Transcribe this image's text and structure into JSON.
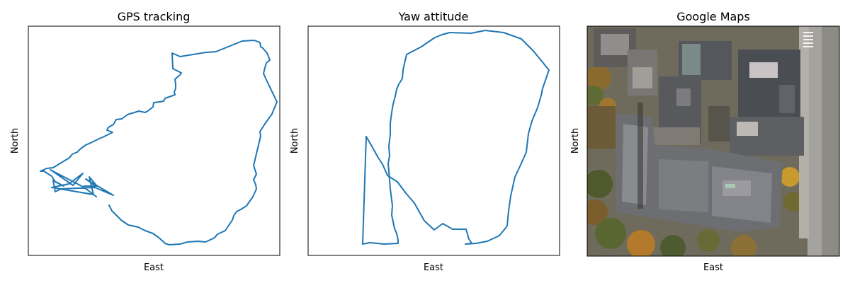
{
  "chart_data": [
    {
      "type": "line",
      "title": "GPS tracking",
      "xlabel": "East",
      "ylabel": "North",
      "ticks": "none",
      "grid": false,
      "xlim": [
        0,
        355
      ],
      "ylim": [
        0,
        324
      ],
      "series": [
        {
          "color": "#1f77b4",
          "x": [
            114,
            118,
            131,
            141,
            155,
            165,
            176,
            183,
            190,
            193,
            199,
            214,
            225,
            240,
            250,
            259,
            263,
            267,
            278,
            282,
            288,
            290,
            294,
            300,
            308,
            317,
            322,
            321,
            318,
            322,
            318,
            325,
            328,
            327,
            334,
            344,
            351,
            338,
            332,
            334,
            336,
            341,
            337,
            331,
            328,
            327,
            319,
            302,
            265,
            251,
            214,
            212,
            203,
            204,
            216,
            214,
            207,
            208,
            208,
            206,
            207,
            193,
            191,
            185,
            177,
            176,
            170,
            165,
            156,
            140,
            132,
            124,
            120,
            113,
            111,
            119,
            113,
            105,
            100,
            90,
            81,
            74,
            69,
            62,
            58,
            35,
            26,
            17,
            22,
            33,
            38,
            50,
            35,
            38,
            46,
            94,
            120,
            81,
            95,
            79,
            97,
            86,
            92,
            33,
            57,
            77,
            63,
            33,
            31,
            79,
            96
          ],
          "y": [
            71,
            63,
            50,
            43,
            40,
            35,
            31,
            26,
            20,
            17,
            15,
            16,
            19,
            20,
            19,
            23,
            25,
            30,
            35,
            41,
            50,
            56,
            62,
            65,
            70,
            83,
            94,
            100,
            107,
            115,
            127,
            156,
            169,
            175,
            186,
            200,
            217,
            244,
            257,
            265,
            272,
            276,
            286,
            293,
            295,
            301,
            304,
            303,
            288,
            287,
            281,
            282,
            286,
            264,
            258,
            255,
            249,
            242,
            236,
            231,
            227,
            222,
            218,
            217,
            216,
            210,
            205,
            202,
            204,
            199,
            193,
            192,
            185,
            181,
            177,
            174,
            171,
            167,
            165,
            160,
            156,
            151,
            146,
            143,
            138,
            124,
            123,
            119,
            119,
            112,
            104,
            98,
            106,
            90,
            94,
            96,
            85,
            108,
            98,
            98,
            98,
            111,
            86,
            96,
            101,
            116,
            99,
            120,
            121,
            96,
            83
          ]
        }
      ]
    },
    {
      "type": "line",
      "title": "Yaw attitude",
      "xlabel": "East",
      "ylabel": "North",
      "ticks": "none",
      "grid": false,
      "xlim": [
        0,
        355
      ],
      "ylim": [
        0,
        324
      ],
      "series": [
        {
          "color": "#1f77b4",
          "x": [
            77,
            87,
            98,
            107,
            127,
            127,
            125,
            122,
            118,
            119,
            116,
            114,
            113,
            115,
            114,
            116,
            116,
            118,
            120,
            123,
            125,
            128,
            133,
            134,
            136,
            139,
            160,
            179,
            189,
            200,
            230,
            250,
            276,
            301,
            318,
            340,
            331,
            329,
            324,
            316,
            311,
            308,
            300,
            292,
            286,
            283,
            281,
            279,
            270,
            253,
            237,
            222,
            231,
            227,
            223,
            204,
            190,
            178,
            164,
            150,
            138,
            126,
            112,
            105,
            99,
            89,
            82,
            77
          ],
          "y": [
            16,
            18,
            17,
            16,
            17,
            22,
            31,
            38,
            57,
            70,
            94,
            118,
            130,
            141,
            154,
            172,
            187,
            202,
            214,
            225,
            235,
            242,
            250,
            262,
            271,
            284,
            295,
            308,
            312,
            315,
            314,
            318,
            315,
            306,
            289,
            262,
            236,
            226,
            209,
            190,
            172,
            146,
            128,
            111,
            84,
            63,
            42,
            39,
            28,
            20,
            17,
            16,
            17,
            23,
            37,
            37,
            45,
            36,
            49,
            74,
            88,
            104,
            113,
            129,
            138,
            156,
            168,
            16
          ]
        }
      ]
    },
    {
      "type": "image",
      "title": "Google Maps",
      "xlabel": "East",
      "ylabel": "North",
      "ticks": "none"
    }
  ]
}
